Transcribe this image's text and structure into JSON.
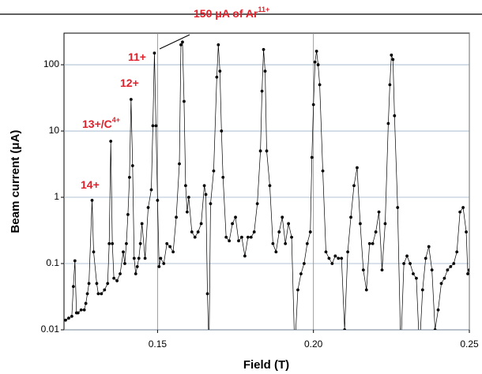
{
  "chart_data": {
    "type": "line",
    "xlabel": "Field (T)",
    "ylabel": "Beam current (μA)",
    "log_y": true,
    "grid": true,
    "color": "#000000",
    "annotation_color": "#e0202a",
    "annotations": [
      {
        "text": "150 μA of Ar",
        "sup": "11+"
      },
      {
        "text": "11+"
      },
      {
        "text": "12+"
      },
      {
        "text": "13+/C",
        "sup": "4+"
      },
      {
        "text": "14+"
      }
    ],
    "xlim": [
      0.12,
      0.25
    ],
    "xticks": [
      0.15,
      {
        "value": 0.2,
        "label": "0.20"
      },
      0.25
    ],
    "ylim": [
      0.01,
      300
    ],
    "yticks": [
      0.01,
      0.1,
      1,
      10,
      100
    ],
    "x": [
      0.1205,
      0.1215,
      0.1225,
      0.123,
      0.1235,
      0.124,
      0.1245,
      0.1255,
      0.1265,
      0.127,
      0.1275,
      0.128,
      0.129,
      0.1295,
      0.1305,
      0.131,
      0.132,
      0.133,
      0.134,
      0.1345,
      0.135,
      0.1355,
      0.136,
      0.137,
      0.138,
      0.139,
      0.1395,
      0.14,
      0.1405,
      0.141,
      0.1415,
      0.142,
      0.1425,
      0.143,
      0.1435,
      0.144,
      0.1445,
      0.145,
      0.146,
      0.147,
      0.148,
      0.1485,
      0.149,
      0.1495,
      0.15,
      0.1505,
      0.151,
      0.152,
      0.153,
      0.154,
      0.155,
      0.156,
      0.157,
      0.1575,
      0.158,
      0.1585,
      0.159,
      0.1595,
      0.16,
      0.161,
      0.162,
      0.163,
      0.164,
      0.165,
      0.1655,
      0.166,
      0.1665,
      0.167,
      0.168,
      0.169,
      0.1695,
      0.17,
      0.1705,
      0.171,
      0.172,
      0.173,
      0.174,
      0.175,
      0.176,
      0.177,
      0.178,
      0.179,
      0.18,
      0.181,
      0.182,
      0.183,
      0.1835,
      0.184,
      0.1845,
      0.185,
      0.186,
      0.187,
      0.188,
      0.189,
      0.19,
      0.191,
      0.192,
      0.193,
      0.194,
      0.195,
      0.196,
      0.197,
      0.198,
      0.199,
      0.1995,
      0.2,
      0.2005,
      0.201,
      0.2015,
      0.202,
      0.203,
      0.204,
      0.205,
      0.206,
      0.207,
      0.208,
      0.209,
      0.21,
      0.211,
      0.212,
      0.213,
      0.214,
      0.215,
      0.216,
      0.217,
      0.218,
      0.219,
      0.22,
      0.221,
      0.222,
      0.223,
      0.224,
      0.2245,
      0.225,
      0.2255,
      0.226,
      0.227,
      0.228,
      0.229,
      0.23,
      0.231,
      0.232,
      0.233,
      0.234,
      0.235,
      0.236,
      0.237,
      0.238,
      0.239,
      0.24,
      0.241,
      0.242,
      0.243,
      0.244,
      0.245,
      0.246,
      0.247,
      0.248,
      0.249,
      0.2495,
      0.25
    ],
    "values": [
      0.014,
      0.015,
      0.016,
      0.045,
      0.11,
      0.018,
      0.018,
      0.02,
      0.02,
      0.025,
      0.035,
      0.05,
      0.9,
      0.15,
      0.05,
      0.035,
      0.035,
      0.04,
      0.05,
      0.2,
      7,
      0.2,
      0.06,
      0.055,
      0.07,
      0.15,
      0.1,
      0.2,
      0.55,
      2,
      30,
      3,
      0.12,
      0.07,
      0.09,
      0.12,
      0.2,
      0.4,
      0.12,
      0.7,
      1.3,
      12,
      150,
      12,
      0.9,
      0.09,
      0.12,
      0.1,
      0.2,
      0.18,
      0.15,
      0.5,
      3.2,
      200,
      220,
      28,
      1.5,
      0.6,
      1,
      0.3,
      0.25,
      0.3,
      0.4,
      1.5,
      1.1,
      0.035,
      0.005,
      0.8,
      2.5,
      65,
      200,
      80,
      10,
      2,
      0.25,
      0.22,
      0.4,
      0.5,
      0.22,
      0.25,
      0.13,
      0.25,
      0.25,
      0.3,
      0.8,
      5,
      40,
      170,
      80,
      5,
      1.5,
      0.2,
      0.15,
      0.3,
      0.5,
      0.2,
      0.4,
      0.25,
      0.005,
      0.04,
      0.07,
      0.1,
      0.2,
      0.3,
      4,
      25,
      110,
      160,
      100,
      50,
      2.5,
      0.15,
      0.12,
      0.1,
      0.13,
      0.12,
      0.12,
      0.01,
      0.15,
      0.5,
      1.5,
      2.8,
      0.4,
      0.08,
      0.04,
      0.2,
      0.2,
      0.3,
      0.6,
      0.08,
      0.4,
      13,
      50,
      140,
      120,
      17,
      0.7,
      0.005,
      0.1,
      0.13,
      0.1,
      0.07,
      0.06,
      0.005,
      0.04,
      0.12,
      0.18,
      0.08,
      0.01,
      0.02,
      0.05,
      0.06,
      0.08,
      0.09,
      0.1,
      0.15,
      0.6,
      0.7,
      0.3,
      0.07,
      0.08
    ]
  }
}
